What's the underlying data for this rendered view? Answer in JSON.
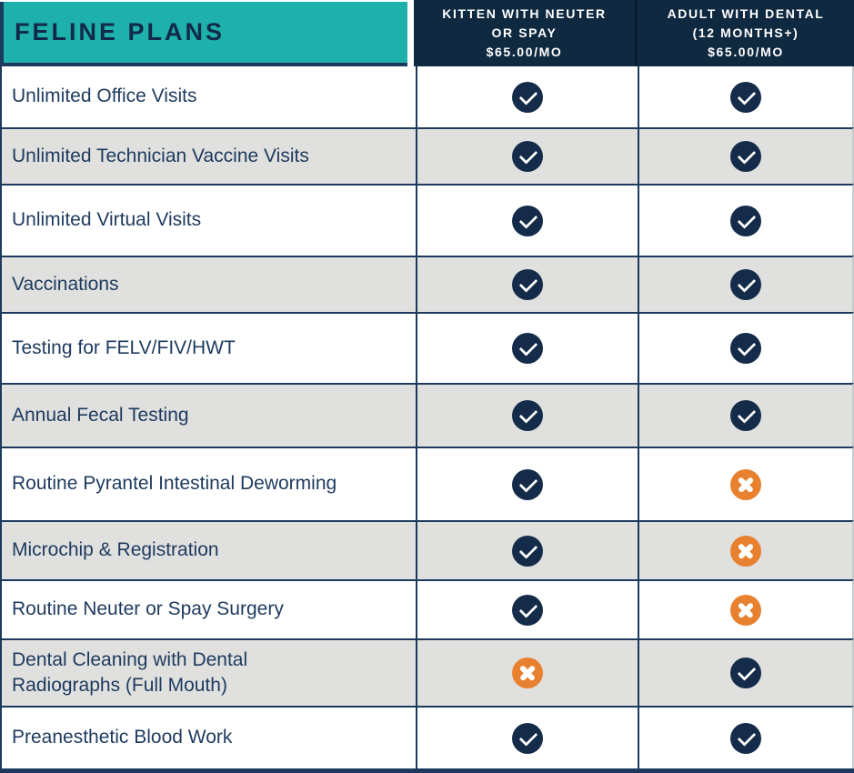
{
  "header": {
    "title": "FELINE PLANS",
    "columns": [
      {
        "name_lines": [
          "KITTEN WITH NEUTER",
          "OR SPAY"
        ],
        "price": "$65.00/MO"
      },
      {
        "name_lines": [
          "ADULT WITH DENTAL",
          "(12 MONTHS+)"
        ],
        "price": "$65.00/MO"
      }
    ]
  },
  "rows": [
    {
      "feature": "Unlimited Office Visits",
      "kitten": "included",
      "adult": "included"
    },
    {
      "feature": "Unlimited Technician Vaccine Visits",
      "kitten": "included",
      "adult": "included"
    },
    {
      "feature": "Unlimited Virtual Visits",
      "kitten": "included",
      "adult": "included"
    },
    {
      "feature": "Vaccinations",
      "kitten": "included",
      "adult": "included"
    },
    {
      "feature": "Testing for FELV/FIV/HWT",
      "kitten": "included",
      "adult": "included"
    },
    {
      "feature": "Annual Fecal Testing",
      "kitten": "included",
      "adult": "included"
    },
    {
      "feature": "Routine Pyrantel Intestinal Deworming",
      "kitten": "included",
      "adult": "not-included"
    },
    {
      "feature": "Microchip & Registration",
      "kitten": "included",
      "adult": "not-included"
    },
    {
      "feature": "Routine Neuter or Spay Surgery",
      "kitten": "included",
      "adult": "not-included"
    },
    {
      "feature": "Dental Cleaning with Dental\nRadiographs (Full Mouth)",
      "kitten": "not-included",
      "adult": "included"
    },
    {
      "feature": "Preanesthetic Blood Work",
      "kitten": "included",
      "adult": "included"
    }
  ],
  "icons": {
    "included": "check-icon",
    "not_included": "cross-icon"
  },
  "colors": {
    "teal": "#1eb0aa",
    "header_navy": "#0f2940",
    "icon_navy": "#142c4a",
    "orange": "#e8812f",
    "row_alt_gray": "#e0e0df",
    "text_navy": "#1e3a5e"
  },
  "chart_data": {
    "type": "table",
    "title": "FELINE PLANS",
    "columns": [
      "KITTEN WITH NEUTER OR SPAY $65.00/MO",
      "ADULT WITH DENTAL (12 MONTHS+) $65.00/MO"
    ],
    "rows": [
      "Unlimited Office Visits",
      "Unlimited Technician Vaccine Visits",
      "Unlimited Virtual Visits",
      "Vaccinations",
      "Testing for FELV/FIV/HWT",
      "Annual Fecal Testing",
      "Routine Pyrantel Intestinal Deworming",
      "Microchip & Registration",
      "Routine Neuter or Spay Surgery",
      "Dental Cleaning with Dental Radiographs (Full Mouth)",
      "Preanesthetic Blood Work"
    ],
    "values": [
      [
        true,
        true
      ],
      [
        true,
        true
      ],
      [
        true,
        true
      ],
      [
        true,
        true
      ],
      [
        true,
        true
      ],
      [
        true,
        true
      ],
      [
        true,
        false
      ],
      [
        true,
        false
      ],
      [
        true,
        false
      ],
      [
        false,
        true
      ],
      [
        true,
        true
      ]
    ]
  }
}
